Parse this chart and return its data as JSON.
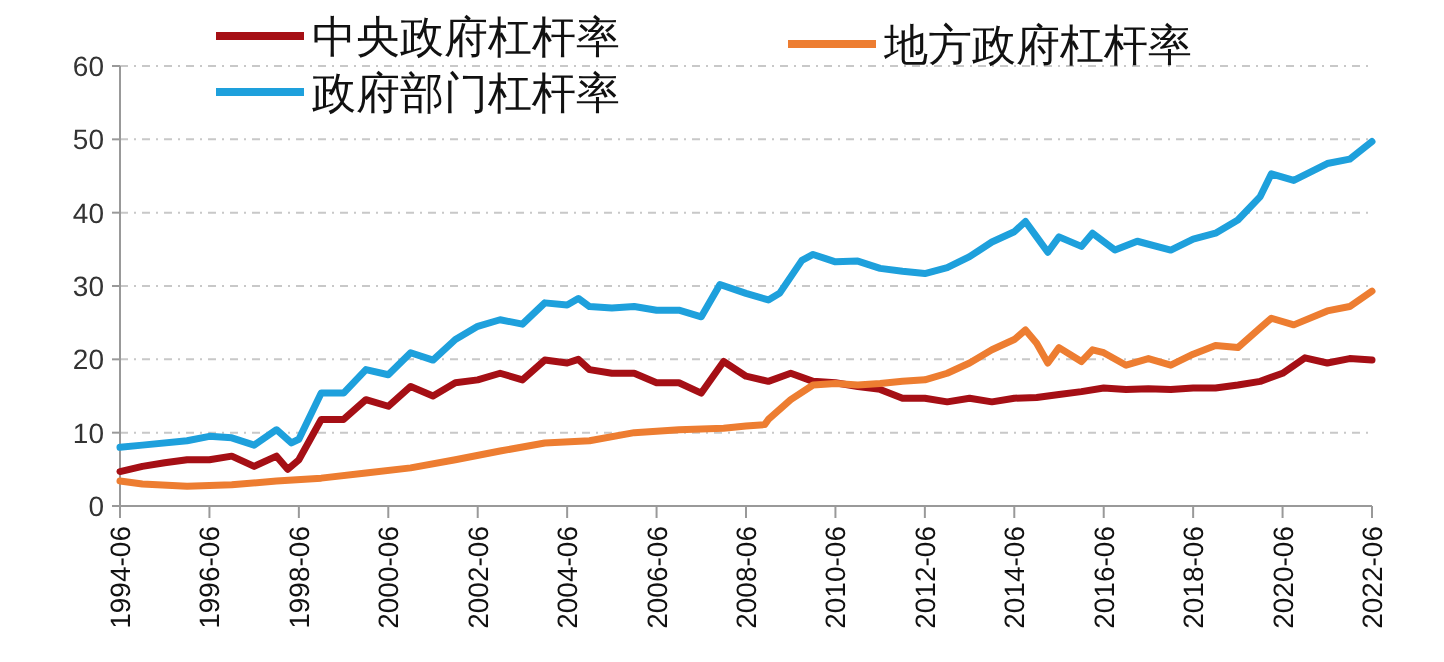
{
  "chart_data": {
    "type": "line",
    "legend": "top",
    "grid": "y",
    "ylim": [
      0,
      60
    ],
    "yticks": [
      0,
      10,
      20,
      30,
      40,
      50,
      60
    ],
    "xlim": [
      "1994-06",
      "2022-06"
    ],
    "xticks": [
      "1994-06",
      "1996-06",
      "1998-06",
      "2000-06",
      "2002-06",
      "2004-06",
      "2006-06",
      "2008-06",
      "2010-06",
      "2012-06",
      "2014-06",
      "2016-06",
      "2018-06",
      "2020-06",
      "2022-06"
    ],
    "series": [
      {
        "name": "中央政府杠杆率",
        "color": "#a50f15",
        "x": [
          "1994-06",
          "1994-12",
          "1995-06",
          "1995-12",
          "1996-06",
          "1996-12",
          "1997-06",
          "1997-12",
          "1998-03",
          "1998-06",
          "1998-12",
          "1999-06",
          "1999-12",
          "2000-06",
          "2000-12",
          "2001-06",
          "2001-12",
          "2002-06",
          "2002-12",
          "2003-06",
          "2003-12",
          "2004-06",
          "2004-09",
          "2004-12",
          "2005-06",
          "2005-12",
          "2006-06",
          "2006-12",
          "2007-06",
          "2007-12",
          "2008-06",
          "2008-12",
          "2009-06",
          "2009-12",
          "2010-06",
          "2010-12",
          "2011-06",
          "2011-12",
          "2012-06",
          "2012-12",
          "2013-06",
          "2013-12",
          "2014-06",
          "2014-12",
          "2015-06",
          "2015-12",
          "2016-06",
          "2016-12",
          "2017-06",
          "2017-12",
          "2018-06",
          "2018-12",
          "2019-06",
          "2019-12",
          "2020-06",
          "2020-12",
          "2021-06",
          "2021-12",
          "2022-06"
        ],
        "values": [
          4.7,
          5.4,
          5.9,
          6.3,
          6.3,
          6.8,
          5.4,
          6.8,
          5.0,
          6.3,
          11.8,
          11.8,
          14.5,
          13.6,
          16.3,
          15.0,
          16.8,
          17.2,
          18.1,
          17.2,
          19.9,
          19.5,
          20.0,
          18.6,
          18.1,
          18.1,
          16.8,
          16.8,
          15.4,
          19.7,
          17.7,
          17.0,
          18.1,
          17.0,
          16.8,
          16.3,
          15.9,
          14.7,
          14.7,
          14.2,
          14.7,
          14.2,
          14.7,
          14.8,
          15.2,
          15.6,
          16.1,
          15.9,
          16.0,
          15.9,
          16.1,
          16.1,
          16.5,
          17.0,
          18.1,
          20.2,
          19.5,
          20.1,
          19.9
        ]
      },
      {
        "name": "地方政府杠杆率",
        "color": "#ed7d31",
        "x": [
          "1994-06",
          "1994-12",
          "1995-12",
          "1996-12",
          "1997-12",
          "1998-12",
          "1999-12",
          "2000-12",
          "2001-12",
          "2002-12",
          "2003-12",
          "2004-12",
          "2005-12",
          "2006-12",
          "2007-12",
          "2008-06",
          "2008-11",
          "2008-12",
          "2009-06",
          "2009-12",
          "2010-06",
          "2010-12",
          "2011-06",
          "2011-12",
          "2012-06",
          "2012-12",
          "2013-06",
          "2013-12",
          "2014-06",
          "2014-09",
          "2014-12",
          "2015-03",
          "2015-06",
          "2015-12",
          "2016-03",
          "2016-06",
          "2016-12",
          "2017-06",
          "2017-12",
          "2018-06",
          "2018-12",
          "2019-06",
          "2019-12",
          "2020-03",
          "2020-09",
          "2021-06",
          "2021-12",
          "2022-06"
        ],
        "values": [
          3.4,
          3.0,
          2.7,
          2.9,
          3.4,
          3.8,
          4.5,
          5.2,
          6.3,
          7.5,
          8.6,
          8.9,
          10.0,
          10.4,
          10.6,
          10.9,
          11.1,
          11.8,
          14.5,
          16.5,
          16.7,
          16.5,
          16.7,
          17.0,
          17.2,
          18.1,
          19.5,
          21.3,
          22.7,
          24.0,
          22.2,
          19.5,
          21.6,
          19.7,
          21.3,
          20.9,
          19.2,
          20.1,
          19.2,
          20.7,
          21.9,
          21.6,
          24.3,
          25.6,
          24.7,
          26.6,
          27.2,
          29.3
        ]
      },
      {
        "name": "政府部门杠杆率",
        "color": "#1ea0dc",
        "x": [
          "1994-06",
          "1994-12",
          "1995-12",
          "1996-06",
          "1996-12",
          "1997-06",
          "1997-12",
          "1998-04",
          "1998-06",
          "1998-12",
          "1999-06",
          "1999-12",
          "2000-06",
          "2000-12",
          "2001-06",
          "2001-12",
          "2002-06",
          "2002-12",
          "2003-06",
          "2003-12",
          "2004-06",
          "2004-09",
          "2004-12",
          "2005-06",
          "2005-12",
          "2006-06",
          "2006-12",
          "2007-06",
          "2007-11",
          "2008-06",
          "2008-12",
          "2009-03",
          "2009-09",
          "2009-12",
          "2010-06",
          "2010-12",
          "2011-06",
          "2011-12",
          "2012-06",
          "2012-12",
          "2013-06",
          "2013-12",
          "2014-06",
          "2014-09",
          "2014-12",
          "2015-03",
          "2015-06",
          "2015-12",
          "2016-03",
          "2016-09",
          "2017-03",
          "2017-12",
          "2018-06",
          "2018-12",
          "2019-06",
          "2019-12",
          "2020-03",
          "2020-09",
          "2021-06",
          "2021-12",
          "2022-06"
        ],
        "values": [
          8.0,
          8.3,
          8.9,
          9.5,
          9.3,
          8.3,
          10.4,
          8.6,
          9.1,
          15.4,
          15.4,
          18.6,
          17.9,
          20.9,
          19.9,
          22.7,
          24.5,
          25.4,
          24.8,
          27.7,
          27.4,
          28.3,
          27.2,
          27.0,
          27.2,
          26.7,
          26.7,
          25.8,
          30.2,
          29.0,
          28.1,
          29.0,
          33.5,
          34.3,
          33.3,
          33.4,
          32.4,
          32.0,
          31.7,
          32.5,
          34.0,
          36.0,
          37.4,
          38.8,
          36.7,
          34.6,
          36.7,
          35.4,
          37.2,
          34.9,
          36.1,
          34.9,
          36.4,
          37.2,
          39.0,
          42.2,
          45.3,
          44.4,
          46.7,
          47.3,
          49.7
        ]
      }
    ]
  }
}
